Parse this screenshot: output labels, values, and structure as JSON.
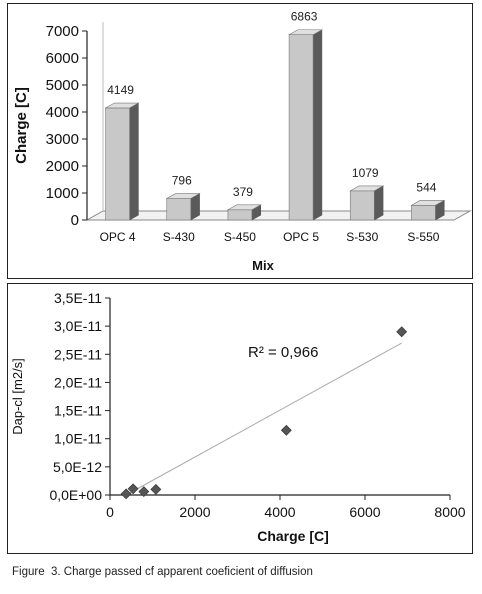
{
  "chart_data": [
    {
      "type": "bar",
      "categories": [
        "OPC 4",
        "S-430",
        "S-450",
        "OPC 5",
        "S-530",
        "S-550"
      ],
      "values": [
        4149,
        796,
        379,
        6863,
        1079,
        544
      ],
      "value_labels": [
        "4149",
        "796",
        "379",
        "6863",
        "1079",
        "544"
      ],
      "xlabel": "Mix",
      "ylabel": "Charge [C]",
      "ylim": [
        0,
        7000
      ],
      "yticks": [
        0,
        1000,
        2000,
        3000,
        4000,
        5000,
        6000,
        7000
      ],
      "ytick_labels": [
        "0",
        "1000",
        "2000",
        "3000",
        "4000",
        "5000",
        "6000",
        "7000"
      ],
      "style": "3d",
      "bar_color": "#c8c8c8",
      "grid": false
    },
    {
      "type": "scatter",
      "points": [
        {
          "x": 379,
          "y": 2e-13
        },
        {
          "x": 544,
          "y": 1.1e-12
        },
        {
          "x": 796,
          "y": 6e-13
        },
        {
          "x": 1079,
          "y": 1e-12
        },
        {
          "x": 4149,
          "y": 1.15e-11
        },
        {
          "x": 6863,
          "y": 2.9e-11
        }
      ],
      "trendline": {
        "type": "linear",
        "x": [
          379,
          6863
        ],
        "y": [
          0,
          2.7e-11
        ],
        "color": "#aaaaaa"
      },
      "annotation": "R² = 0,966",
      "xlabel": "Charge [C]",
      "ylabel": "Dap-cl [m2/s]",
      "xlim": [
        0,
        8000
      ],
      "ylim": [
        0,
        3.5e-11
      ],
      "xticks": [
        0,
        2000,
        4000,
        6000,
        8000
      ],
      "xtick_labels": [
        "0",
        "2000",
        "4000",
        "6000",
        "8000"
      ],
      "yticks": [
        0,
        5e-12,
        1e-11,
        1.5e-11,
        2e-11,
        2.5e-11,
        3e-11,
        3.5e-11
      ],
      "ytick_labels": [
        "0,0E+00",
        "5,0E-12",
        "1,0E-11",
        "1,5E-11",
        "2,0E-11",
        "2,5E-11",
        "3,0E-11",
        "3,5E-11"
      ],
      "marker": "diamond",
      "marker_color": "#555555",
      "grid": false
    }
  ],
  "caption": "Figure  3. Charge passed cf apparent coeficient of diffusion"
}
